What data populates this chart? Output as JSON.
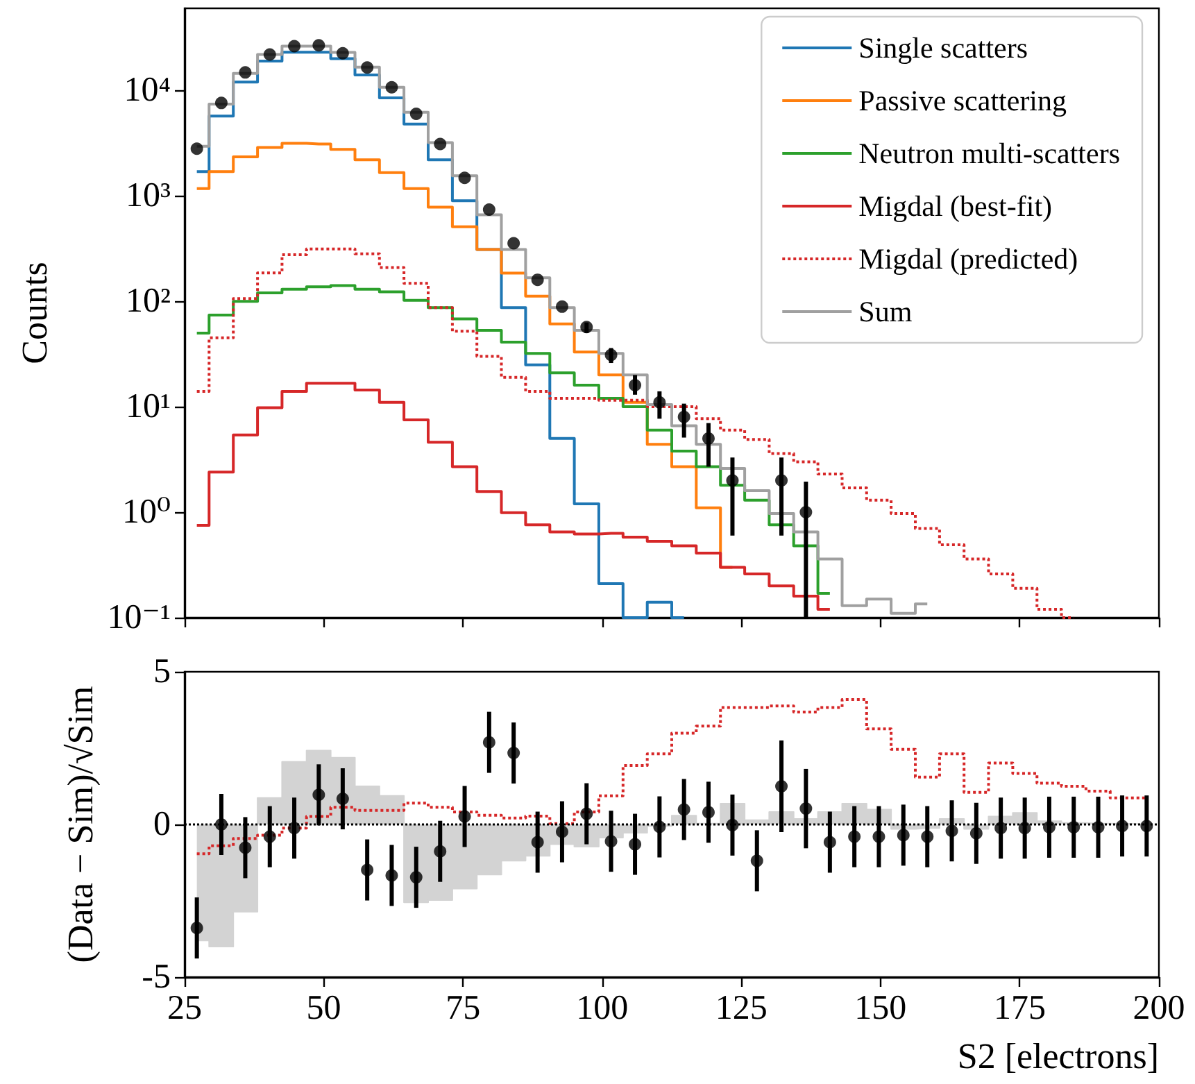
{
  "chart_data": [
    {
      "type": "step",
      "ylabel": "Counts",
      "log": "y",
      "tick_labels": "y",
      "legend": "top right",
      "marker": "none",
      "xlim": [
        25,
        200
      ],
      "xticks": [
        25,
        50,
        75,
        100,
        125,
        150,
        175,
        200
      ],
      "ylim": [
        0.1,
        60000
      ],
      "yticks": [
        {
          "value": 0.1,
          "label": "10⁻¹"
        },
        {
          "value": 1,
          "label": "10⁰"
        },
        {
          "value": 10,
          "label": "10¹"
        },
        {
          "value": 100,
          "label": "10²"
        },
        {
          "value": 1000,
          "label": "10³"
        },
        {
          "value": 10000,
          "label": "10⁴"
        }
      ],
      "series": [
        {
          "name": "Single scatters",
          "color": "#1f77b4",
          "x": [
            27.2,
            31.6,
            35.9,
            40.3,
            44.7,
            49.1,
            53.4,
            57.8,
            62.2,
            66.6,
            70.9,
            75.3,
            79.7,
            84.1,
            88.4,
            92.8,
            97.2,
            101.6,
            105.9,
            110.3,
            114.7
          ],
          "values": [
            1700,
            5700,
            12000,
            19000,
            23000,
            23000,
            20000,
            14000,
            8500,
            4800,
            2200,
            900,
            310,
            87,
            25,
            5,
            1.2,
            0.21,
            0.1,
            0.14,
            0.1
          ]
        },
        {
          "name": "Passive scattering",
          "color": "#ff7f0e",
          "x": [
            27.2,
            31.6,
            35.9,
            40.3,
            44.7,
            49.1,
            53.4,
            57.8,
            62.2,
            66.6,
            70.9,
            75.3,
            79.7,
            84.1,
            88.4,
            92.8,
            97.2,
            101.6,
            105.9,
            110.3,
            114.7,
            119.1,
            123.4
          ],
          "values": [
            1170,
            1700,
            2340,
            2870,
            3150,
            3100,
            2760,
            2200,
            1660,
            1170,
            780,
            510,
            310,
            185,
            112,
            61,
            33,
            20,
            11,
            4.4,
            2.7,
            1.1,
            0.3
          ]
        },
        {
          "name": "Neutron multi-scatters",
          "color": "#2ca02c",
          "x": [
            27.2,
            31.6,
            35.9,
            40.3,
            44.7,
            49.1,
            53.4,
            57.8,
            62.2,
            66.6,
            70.9,
            75.3,
            79.7,
            84.1,
            88.4,
            92.8,
            97.2,
            101.6,
            105.9,
            110.3,
            114.7,
            119.1,
            123.4,
            127.8,
            132.2,
            136.6,
            140.9
          ],
          "values": [
            50,
            74,
            100,
            120,
            130,
            137,
            141,
            130,
            123,
            102,
            87,
            68,
            53,
            41,
            32,
            21,
            16,
            12,
            10,
            6,
            3.8,
            2.7,
            1.8,
            1.3,
            0.76,
            0.48,
            0.17
          ]
        },
        {
          "name": "Migdal (best-fit)",
          "color": "#d62728",
          "x": [
            27.2,
            31.6,
            35.9,
            40.3,
            44.7,
            49.1,
            53.4,
            57.8,
            62.2,
            66.6,
            70.9,
            75.3,
            79.7,
            84.1,
            88.4,
            92.8,
            97.2,
            101.6,
            105.9,
            110.3,
            114.7,
            119.1,
            123.4,
            127.8,
            132.2,
            136.6,
            140.9
          ],
          "values": [
            0.75,
            2.4,
            5.4,
            9.8,
            14,
            16.7,
            16.7,
            14.4,
            11,
            7.5,
            4.6,
            2.7,
            1.57,
            0.99,
            0.76,
            0.65,
            0.62,
            0.63,
            0.58,
            0.53,
            0.48,
            0.41,
            0.3,
            0.26,
            0.2,
            0.16,
            0.12
          ]
        },
        {
          "name": "Migdal (predicted)",
          "color": "#d62728",
          "line_style": "dotted",
          "x": [
            27.2,
            31.6,
            35.9,
            40.3,
            44.7,
            49.1,
            53.4,
            57.8,
            62.2,
            66.6,
            70.9,
            75.3,
            79.7,
            84.1,
            88.4,
            92.8,
            97.2,
            101.6,
            105.9,
            110.3,
            114.7,
            119.1,
            123.4,
            127.8,
            132.2,
            136.6,
            140.9,
            145.3,
            149.7,
            154.1,
            158.4,
            162.8,
            167.2,
            171.6,
            175.9,
            180.3,
            184.7
          ],
          "values": [
            14,
            45,
            106,
            186,
            277,
            314,
            314,
            282,
            209,
            148,
            87,
            52,
            30,
            19,
            14,
            12,
            12,
            11.5,
            11.5,
            10,
            10,
            7.7,
            6,
            4.9,
            3.6,
            3.0,
            2.3,
            1.7,
            1.3,
            0.97,
            0.7,
            0.49,
            0.36,
            0.26,
            0.19,
            0.12,
            0.1
          ]
        },
        {
          "name": "Sum",
          "color": "#a0a0a0",
          "x": [
            27.2,
            31.6,
            35.9,
            40.3,
            44.7,
            49.1,
            53.4,
            57.8,
            62.2,
            66.6,
            70.9,
            75.3,
            79.7,
            84.1,
            88.4,
            92.8,
            97.2,
            101.6,
            105.9,
            110.3,
            114.7,
            119.1,
            123.4,
            127.8,
            132.2,
            136.6,
            140.9,
            145.3,
            149.7,
            154.1,
            158.4
          ],
          "values": [
            2950,
            7400,
            14500,
            21900,
            26300,
            26300,
            22900,
            16600,
            10700,
            6200,
            3200,
            1550,
            660,
            310,
            167,
            87,
            53,
            32,
            20,
            10.5,
            6.6,
            4.4,
            2.6,
            1.6,
            0.97,
            0.65,
            0.36,
            0.13,
            0.15,
            0.11,
            0.135
          ]
        },
        {
          "type": "scatter",
          "marker": "circle",
          "color": "#000000",
          "x": [
            27.2,
            31.6,
            35.9,
            40.3,
            44.7,
            49.1,
            53.4,
            57.8,
            62.2,
            66.6,
            70.9,
            75.3,
            79.7,
            84.1,
            88.4,
            92.8,
            97.2,
            101.6,
            105.9,
            110.3,
            114.7,
            119.1,
            123.4,
            127.8,
            132.2,
            136.6
          ],
          "values": [
            2800,
            7600,
            14800,
            21900,
            26300,
            26800,
            22500,
            16500,
            10700,
            6000,
            3100,
            1480,
            740,
            355,
            160,
            89,
            57,
            31,
            16,
            11,
            8,
            5,
            2.0,
            null,
            2.0,
            1.0
          ],
          "errors": [
            null,
            null,
            null,
            null,
            null,
            null,
            null,
            null,
            null,
            null,
            null,
            null,
            null,
            null,
            null,
            null,
            [
              50,
              63
            ],
            [
              26,
              36
            ],
            [
              13,
              20
            ],
            [
              7.7,
              14
            ],
            [
              5.1,
              10.7
            ],
            [
              2.7,
              7
            ],
            [
              0.6,
              3.3
            ],
            null,
            [
              0.6,
              3.3
            ],
            [
              0.1,
              1.95
            ]
          ]
        }
      ]
    },
    {
      "type": "step",
      "xlabel": "S2 [electrons]",
      "ylabel": "(Data − Sim)/√Sim",
      "marker": "none",
      "x": [
        27.2,
        31.6,
        35.9,
        40.3,
        44.7,
        49.1,
        53.4,
        57.8,
        62.2,
        66.6,
        70.9,
        75.3,
        79.7,
        84.1,
        88.4,
        92.8,
        97.2,
        101.6,
        105.9,
        110.3,
        114.7,
        119.1,
        123.4,
        127.8,
        132.2,
        136.6,
        140.9,
        145.3,
        149.7,
        154.1,
        158.4,
        162.8,
        167.2,
        171.6,
        175.9,
        180.3,
        184.7,
        189.1,
        193.4,
        197.8
      ],
      "xlim": [
        25,
        200
      ],
      "xticks": [
        25,
        50,
        75,
        100,
        125,
        150,
        175,
        200
      ],
      "ylim": [
        -5,
        5
      ],
      "yticks": [
        -5,
        0,
        5
      ],
      "ref_lines": [
        {
          "axis": "y",
          "value": 0,
          "color": "#000000",
          "line_style": "dotted"
        }
      ],
      "series": [
        {
          "type": "area",
          "color": "#d3d3d3",
          "values": [
            -3.8,
            -4.0,
            -2.86,
            0.87,
            2.05,
            2.42,
            2.19,
            1.25,
            0.94,
            -2.55,
            -2.48,
            -2.1,
            -1.64,
            -1.19,
            -1.03,
            -0.65,
            -0.73,
            -0.43,
            -0.27,
            -0.05,
            0.29,
            0.03,
            0.68,
            0.14,
            0.41,
            0.18,
            0.41,
            0.68,
            0.49,
            -0.15,
            -0.12,
            0.18,
            -0.15,
            0.26,
            0.38,
            0.11,
            0.05,
            0.03,
            0.02,
            0
          ]
        },
        {
          "color": "#d62728",
          "line_style": "dotted",
          "values": [
            -0.96,
            -0.7,
            -0.46,
            -0.35,
            -0.12,
            0.26,
            0.56,
            0.46,
            0.46,
            0.7,
            0.56,
            0.41,
            0.3,
            0.21,
            0.27,
            0.03,
            0.41,
            0.94,
            1.93,
            2.31,
            2.99,
            3.22,
            3.83,
            3.83,
            3.88,
            3.68,
            3.83,
            4.09,
            3.13,
            2.46,
            1.55,
            2.31,
            1.05,
            2.01,
            1.67,
            1.35,
            1.25,
            1.09,
            0.87,
            0.87
          ]
        },
        {
          "type": "scatter",
          "marker": "circle",
          "color": "#000000",
          "values": [
            -3.39,
            0,
            -0.76,
            -0.4,
            -0.12,
            0.97,
            0.84,
            -1.49,
            -1.67,
            -1.73,
            -0.88,
            0.26,
            2.69,
            2.34,
            -0.58,
            -0.24,
            0.35,
            -0.55,
            -0.65,
            -0.08,
            0.49,
            0.4,
            -0.02,
            -1.19,
            1.25,
            0.52,
            -0.58,
            -0.4,
            -0.4,
            -0.35,
            -0.4,
            -0.21,
            -0.29,
            -0.12,
            -0.12,
            -0.09,
            -0.09,
            -0.09,
            -0.05,
            -0.05
          ],
          "errors": [
            1,
            1,
            1,
            1,
            1,
            1,
            1,
            1,
            1,
            1,
            1,
            1,
            1,
            1,
            1,
            1,
            1,
            1,
            1,
            1,
            1,
            1,
            1,
            1,
            1.5,
            1.3,
            1,
            1,
            1,
            1,
            1,
            1,
            1,
            1,
            1,
            1,
            1,
            1,
            1,
            1
          ]
        }
      ]
    }
  ]
}
